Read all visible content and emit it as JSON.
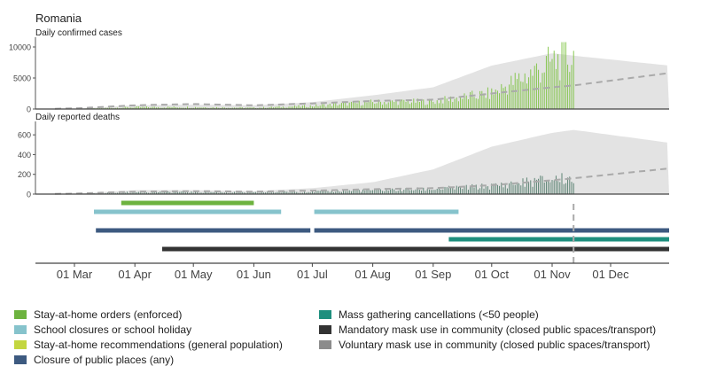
{
  "country": "Romania",
  "colors": {
    "cases_bar": "#7cc241",
    "deaths_bar": "#4f7a69",
    "band": "#e3e3e3",
    "dashed": "#aaaaaa",
    "vline": "#aaaaaa"
  },
  "chart_data": [
    {
      "type": "bar",
      "title": "Daily confirmed cases",
      "x_range": [
        "2020-02-10",
        "2020-12-31"
      ],
      "ylim": [
        0,
        11000
      ],
      "yticks": [
        0,
        5000,
        10000
      ],
      "observed_until": "2020-11-12",
      "series_monthly_approx": {
        "months": [
          "2020-03-01",
          "2020-04-01",
          "2020-05-01",
          "2020-06-01",
          "2020-07-01",
          "2020-08-01",
          "2020-09-01",
          "2020-10-01",
          "2020-11-01",
          "2020-11-12"
        ],
        "daily_cases": [
          10,
          300,
          300,
          200,
          500,
          1100,
          1200,
          2500,
          7500,
          8500
        ],
        "band_upper": [
          50,
          600,
          700,
          600,
          1100,
          2200,
          3500,
          7000,
          9000,
          8600
        ],
        "projection_dashed": [
          100,
          600,
          800,
          600,
          900,
          1300,
          1500,
          2500,
          3500,
          3800
        ]
      },
      "projection_end_value": 5800,
      "band_end_upper": 7000
    },
    {
      "type": "bar",
      "title": "Daily reported deaths",
      "x_range": [
        "2020-02-10",
        "2020-12-31"
      ],
      "ylim": [
        0,
        700
      ],
      "yticks": [
        0,
        200,
        400,
        600
      ],
      "observed_until": "2020-11-12",
      "series_monthly_approx": {
        "months": [
          "2020-03-01",
          "2020-04-01",
          "2020-05-01",
          "2020-06-01",
          "2020-07-01",
          "2020-08-01",
          "2020-09-01",
          "2020-10-01",
          "2020-11-01",
          "2020-11-12"
        ],
        "daily_deaths": [
          0,
          20,
          20,
          15,
          25,
          40,
          50,
          80,
          150,
          160
        ],
        "band_upper": [
          5,
          40,
          40,
          30,
          60,
          120,
          250,
          480,
          620,
          650
        ],
        "projection_dashed": [
          5,
          25,
          30,
          25,
          35,
          50,
          60,
          90,
          140,
          160
        ]
      },
      "projection_end_value": 260,
      "band_end_upper": 520
    },
    {
      "type": "timeline",
      "x_range": [
        "2020-02-10",
        "2020-12-31"
      ],
      "x_tick_labels": [
        "01 Mar",
        "01 Apr",
        "01 May",
        "01 Jun",
        "01 Jul",
        "01 Aug",
        "01 Sep",
        "01 Oct",
        "01 Nov",
        "01 Dec"
      ],
      "x_tick_dates": [
        "2020-03-01",
        "2020-04-01",
        "2020-05-01",
        "2020-06-01",
        "2020-07-01",
        "2020-08-01",
        "2020-09-01",
        "2020-10-01",
        "2020-11-01",
        "2020-12-01"
      ],
      "current_date_marker": "2020-11-12",
      "interventions": [
        {
          "name": "Stay-at-home orders (enforced)",
          "color": "#6db33f",
          "segments": [
            [
              "2020-03-25",
              "2020-06-01"
            ]
          ]
        },
        {
          "name": "School closures or school holiday",
          "color": "#86c3cc",
          "segments": [
            [
              "2020-03-11",
              "2020-06-15"
            ],
            [
              "2020-07-02",
              "2020-09-14"
            ]
          ]
        },
        {
          "name": "Stay-at-home recommendations (general population)",
          "color": "#c3d640",
          "segments": []
        },
        {
          "name": "Closure of public places (any)",
          "color": "#3d5a80",
          "segments": [
            [
              "2020-03-12",
              "2020-06-30"
            ],
            [
              "2020-07-02",
              "2020-12-31"
            ]
          ]
        },
        {
          "name": "Mass gathering cancellations (<50 people)",
          "color": "#1e8f7e",
          "segments": [
            [
              "2020-09-09",
              "2020-12-31"
            ]
          ]
        },
        {
          "name": "Mandatory mask use in community (closed public spaces/transport)",
          "color": "#333333",
          "segments": [
            [
              "2020-04-15",
              "2020-12-31"
            ]
          ]
        },
        {
          "name": "Voluntary mask use in community (closed public spaces/transport)",
          "color": "#8c8c8c",
          "segments": []
        }
      ],
      "legend_placement": "bottom",
      "legend_layout": {
        "left_column": [
          0,
          1,
          2,
          3
        ],
        "right_column": [
          4,
          5,
          6
        ]
      }
    }
  ]
}
